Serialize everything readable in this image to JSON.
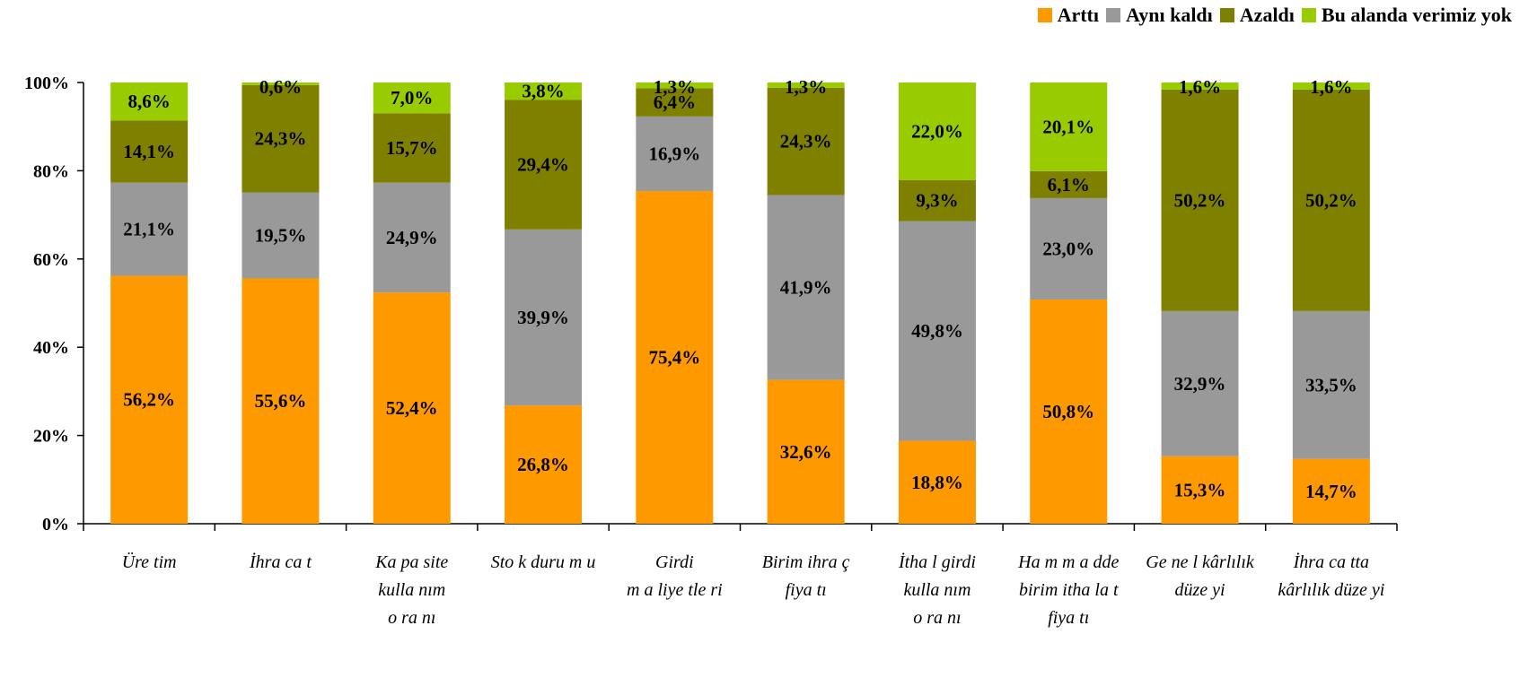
{
  "colors": {
    "Arttı": "#FF9900",
    "Aynı kaldı": "#999999",
    "Azaldı": "#808000",
    "Bu alanda verimiz yok": "#99CC00"
  },
  "legend": {
    "items": [
      "Arttı",
      "Aynı kaldı",
      "Azaldı",
      "Bu alanda verimiz yok"
    ]
  },
  "chart_data": {
    "type": "bar",
    "stacked": true,
    "percent_stacked": true,
    "legend_position": "top-right",
    "grid": false,
    "ylim": [
      0,
      100
    ],
    "y_ticks": [
      "0%",
      "20%",
      "40%",
      "60%",
      "80%",
      "100%"
    ],
    "categories": [
      [
        "Üre tim"
      ],
      [
        "İhra ca t"
      ],
      [
        "Ka pa site",
        "kulla nım",
        "o ra nı"
      ],
      [
        "Sto k duru m u"
      ],
      [
        "Girdi",
        "m a liye tle ri"
      ],
      [
        "Birim ihra ç",
        "fiya tı"
      ],
      [
        "İtha l girdi",
        "kulla nım",
        "o ra nı"
      ],
      [
        "Ha m m a dde",
        "birim itha la t",
        "fiya tı"
      ],
      [
        "Ge ne l kârlılık",
        "düze yi"
      ],
      [
        "İhra ca tta",
        "kârlılık düze yi"
      ]
    ],
    "series": [
      {
        "name": "Arttı",
        "values": [
          56.2,
          55.6,
          52.4,
          26.8,
          75.4,
          32.6,
          18.8,
          50.8,
          15.3,
          14.7
        ],
        "labels": [
          "56,2%",
          "55,6%",
          "52,4%",
          "26,8%",
          "75,4%",
          "32,6%",
          "18,8%",
          "50,8%",
          "15,3%",
          "14,7%"
        ]
      },
      {
        "name": "Aynı kaldı",
        "values": [
          21.1,
          19.5,
          24.9,
          39.9,
          16.9,
          41.9,
          49.8,
          23.0,
          32.9,
          33.5
        ],
        "labels": [
          "21,1%",
          "19,5%",
          "24,9%",
          "39,9%",
          "16,9%",
          "41,9%",
          "49,8%",
          "23,0%",
          "32,9%",
          "33,5%"
        ]
      },
      {
        "name": "Azaldı",
        "values": [
          14.1,
          24.3,
          15.7,
          29.4,
          6.4,
          24.3,
          9.3,
          6.1,
          50.2,
          50.2
        ],
        "labels": [
          "14,1%",
          "24,3%",
          "15,7%",
          "29,4%",
          "6,4%",
          "24,3%",
          "9,3%",
          "6,1%",
          "50,2%",
          "50,2%"
        ]
      },
      {
        "name": "Bu alanda verimiz yok",
        "values": [
          8.6,
          0.6,
          7.0,
          3.8,
          1.3,
          1.3,
          22.0,
          20.1,
          1.6,
          1.6
        ],
        "labels": [
          "8,6%",
          "0,6%",
          "7,0%",
          "3,8%",
          "1,3%",
          "1,3%",
          "22,0%",
          "20,1%",
          "1,6%",
          "1,6%"
        ]
      }
    ]
  }
}
